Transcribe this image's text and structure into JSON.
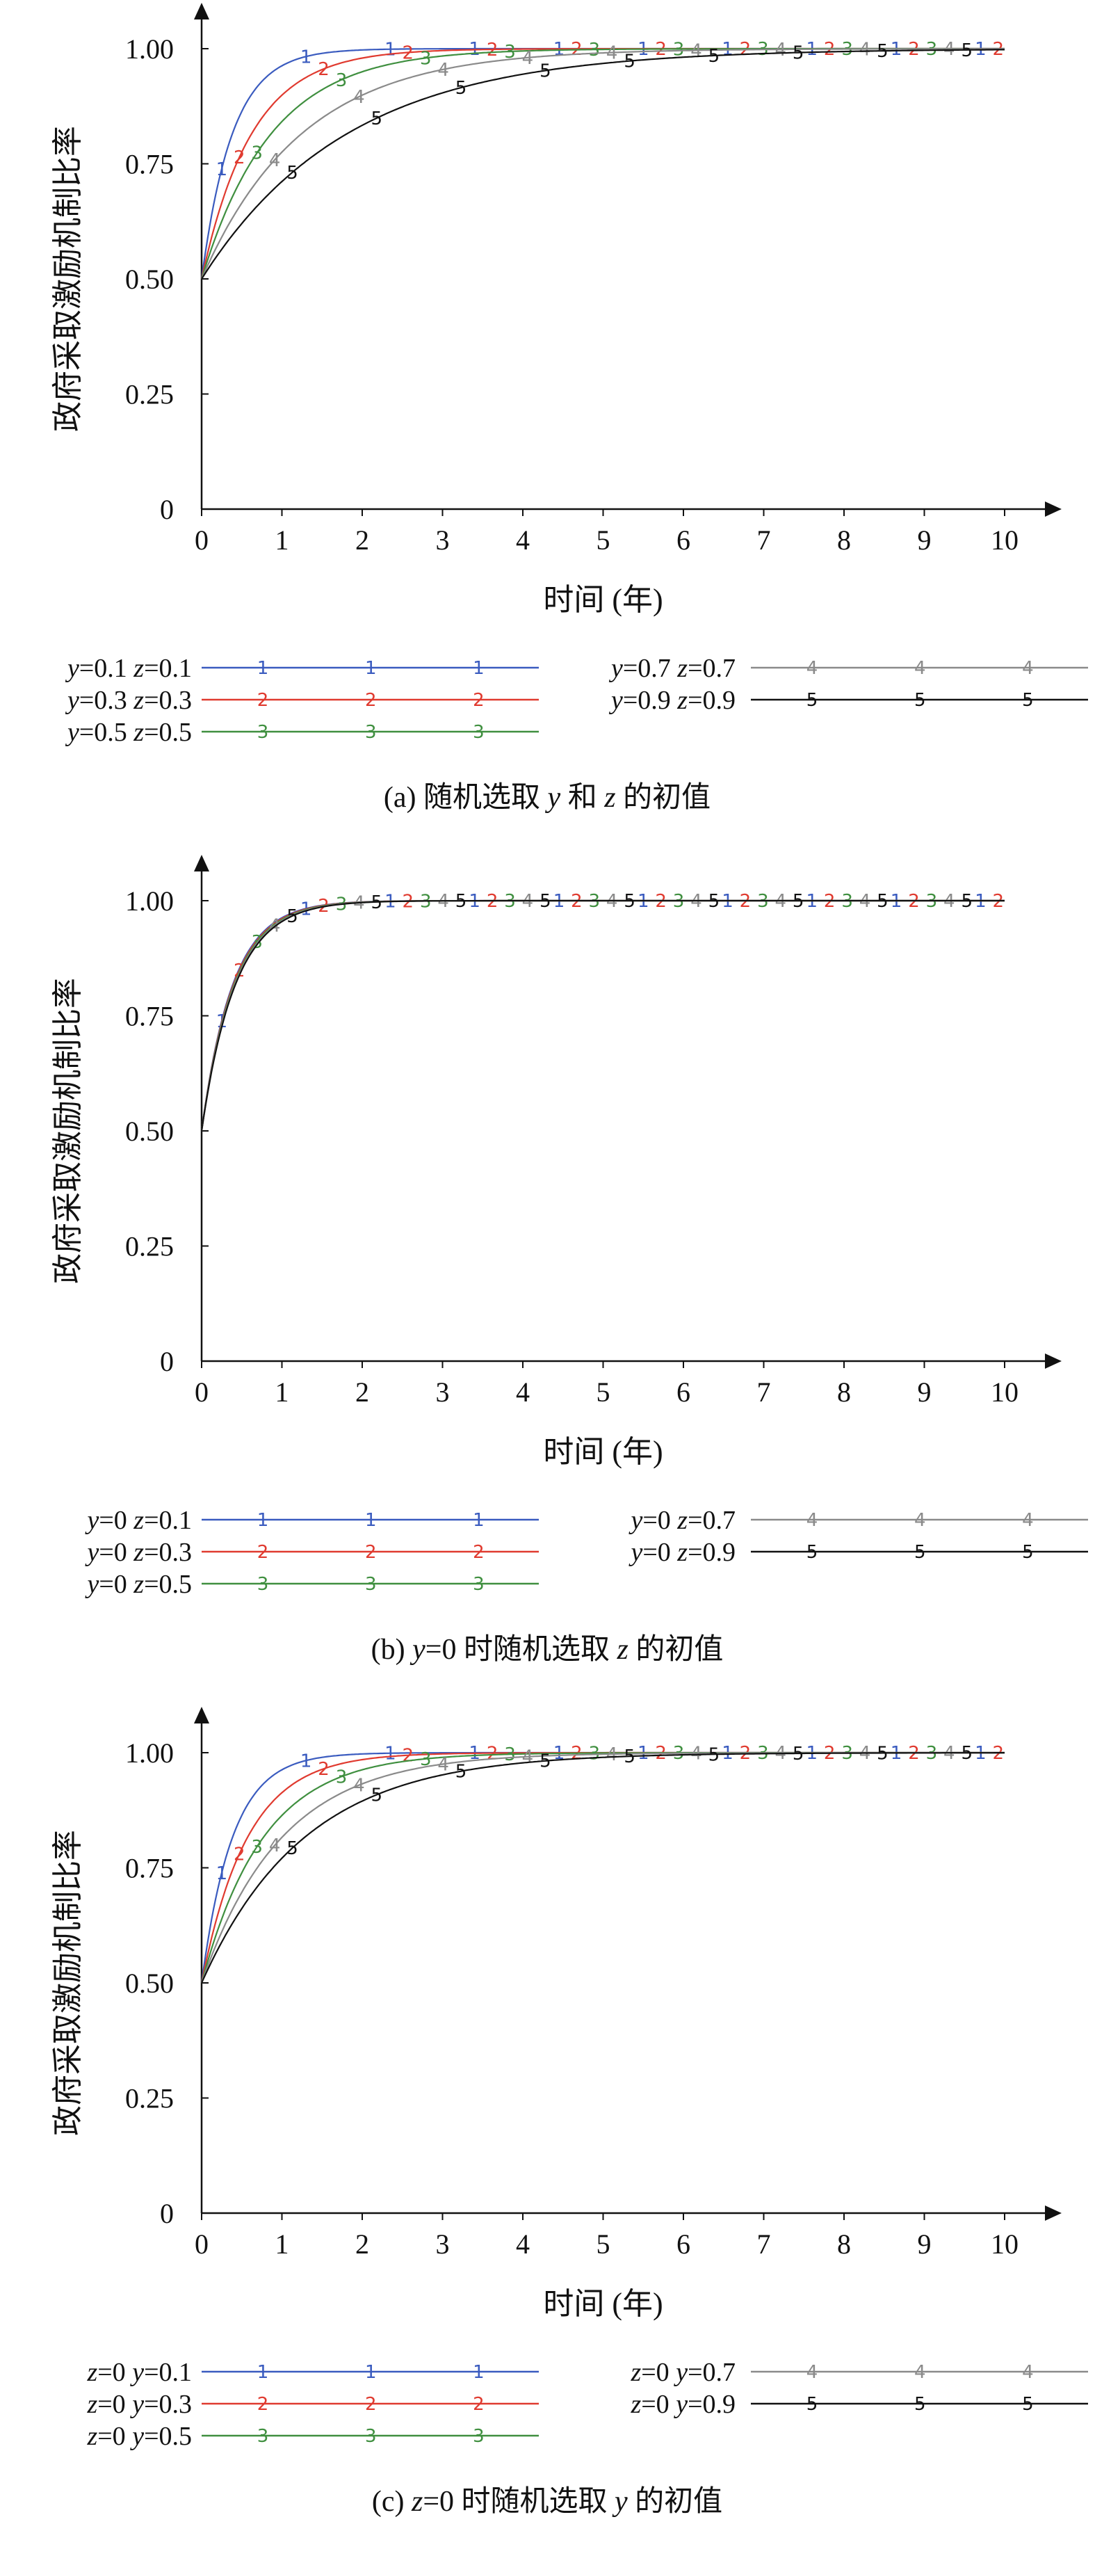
{
  "chart_data": [
    {
      "type": "line",
      "panel": "a",
      "caption": {
        "prefix": "(a) 随机选取 ",
        "v1": "y",
        "mid": " 和 ",
        "v2": "z",
        "suffix": " 的初值"
      },
      "xlabel": "时间 (年)",
      "ylabel": "政府采取激励机制比率",
      "xlim": [
        0,
        10
      ],
      "ylim": [
        0,
        1.0
      ],
      "x_ticks": [
        "0",
        "1",
        "2",
        "3",
        "4",
        "5",
        "6",
        "7",
        "8",
        "9",
        "10"
      ],
      "y_ticks": [
        "0",
        "0.25",
        "0.50",
        "0.75",
        "1.00"
      ],
      "legend_position": "below",
      "series": [
        {
          "marker": "1",
          "color": "#3a5bbf",
          "rate": 2.6,
          "legend": [
            {
              "v": "y",
              "t": "=0.1 "
            },
            {
              "v": "z",
              "t": "=0.1"
            }
          ]
        },
        {
          "marker": "2",
          "color": "#e03a2f",
          "rate": 1.6,
          "legend": [
            {
              "v": "y",
              "t": "=0.3 "
            },
            {
              "v": "z",
              "t": "=0.3"
            }
          ]
        },
        {
          "marker": "3",
          "color": "#3f8f3f",
          "rate": 1.15,
          "legend": [
            {
              "v": "y",
              "t": "=0.5 "
            },
            {
              "v": "z",
              "t": "=0.5"
            }
          ]
        },
        {
          "marker": "4",
          "color": "#8a8a8a",
          "rate": 0.8,
          "legend": [
            {
              "v": "y",
              "t": "=0.7 "
            },
            {
              "v": "z",
              "t": "=0.7"
            }
          ]
        },
        {
          "marker": "5",
          "color": "#111111",
          "rate": 0.55,
          "legend": [
            {
              "v": "y",
              "t": "=0.9 "
            },
            {
              "v": "z",
              "t": "=0.9"
            }
          ]
        }
      ]
    },
    {
      "type": "line",
      "panel": "b",
      "caption": {
        "prefix": "(b) ",
        "v1": "y",
        "mid": "=0 时随机选取 ",
        "v2": "z",
        "suffix": " 的初值"
      },
      "xlabel": "时间 (年)",
      "ylabel": "政府采取激励机制比率",
      "xlim": [
        0,
        10
      ],
      "ylim": [
        0,
        1.0
      ],
      "x_ticks": [
        "0",
        "1",
        "2",
        "3",
        "4",
        "5",
        "6",
        "7",
        "8",
        "9",
        "10"
      ],
      "y_ticks": [
        "0",
        "0.25",
        "0.50",
        "0.75",
        "1.00"
      ],
      "legend_position": "below",
      "series": [
        {
          "marker": "1",
          "color": "#3a5bbf",
          "rate": 2.6,
          "legend": [
            {
              "v": "y",
              "t": "=0 "
            },
            {
              "v": "z",
              "t": "=0.1"
            }
          ]
        },
        {
          "marker": "2",
          "color": "#e03a2f",
          "rate": 2.55,
          "legend": [
            {
              "v": "y",
              "t": "=0 "
            },
            {
              "v": "z",
              "t": "=0.3"
            }
          ]
        },
        {
          "marker": "3",
          "color": "#3f8f3f",
          "rate": 2.5,
          "legend": [
            {
              "v": "y",
              "t": "=0 "
            },
            {
              "v": "z",
              "t": "=0.5"
            }
          ]
        },
        {
          "marker": "4",
          "color": "#8a8a8a",
          "rate": 2.45,
          "legend": [
            {
              "v": "y",
              "t": "=0 "
            },
            {
              "v": "z",
              "t": "=0.7"
            }
          ]
        },
        {
          "marker": "5",
          "color": "#111111",
          "rate": 2.4,
          "legend": [
            {
              "v": "y",
              "t": "=0 "
            },
            {
              "v": "z",
              "t": "=0.9"
            }
          ]
        }
      ]
    },
    {
      "type": "line",
      "panel": "c",
      "caption": {
        "prefix": "(c) ",
        "v1": "z",
        "mid": "=0 时随机选取 ",
        "v2": "y",
        "suffix": " 的初值"
      },
      "xlabel": "时间 (年)",
      "ylabel": "政府采取激励机制比率",
      "xlim": [
        0,
        10
      ],
      "ylim": [
        0,
        1.0
      ],
      "x_ticks": [
        "0",
        "1",
        "2",
        "3",
        "4",
        "5",
        "6",
        "7",
        "8",
        "9",
        "10"
      ],
      "y_ticks": [
        "0",
        "0.25",
        "0.50",
        "0.75",
        "1.00"
      ],
      "legend_position": "below",
      "series": [
        {
          "marker": "1",
          "color": "#3a5bbf",
          "rate": 2.6,
          "legend": [
            {
              "v": "z",
              "t": "=0 "
            },
            {
              "v": "y",
              "t": "=0.1"
            }
          ]
        },
        {
          "marker": "2",
          "color": "#e03a2f",
          "rate": 1.75,
          "legend": [
            {
              "v": "z",
              "t": "=0 "
            },
            {
              "v": "y",
              "t": "=0.3"
            }
          ]
        },
        {
          "marker": "3",
          "color": "#3f8f3f",
          "rate": 1.3,
          "legend": [
            {
              "v": "z",
              "t": "=0 "
            },
            {
              "v": "y",
              "t": "=0.5"
            }
          ]
        },
        {
          "marker": "4",
          "color": "#8a8a8a",
          "rate": 1.0,
          "legend": [
            {
              "v": "z",
              "t": "=0 "
            },
            {
              "v": "y",
              "t": "=0.7"
            }
          ]
        },
        {
          "marker": "5",
          "color": "#111111",
          "rate": 0.78,
          "legend": [
            {
              "v": "z",
              "t": "=0 "
            },
            {
              "v": "y",
              "t": "=0.9"
            }
          ]
        }
      ]
    }
  ]
}
